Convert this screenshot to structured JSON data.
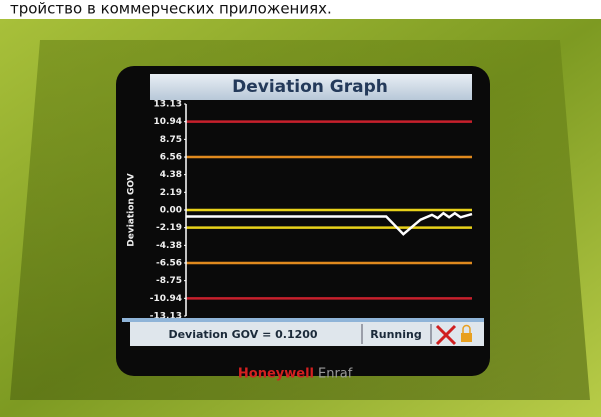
{
  "caption": "тройство в коммерческих приложениях.",
  "chart_data": {
    "type": "line",
    "title": "Deviation Graph",
    "y_label": "Deviation GOV",
    "ylim": [
      -13.13,
      13.13
    ],
    "yticks": [
      13.13,
      10.94,
      8.75,
      6.56,
      4.38,
      2.19,
      {
        "value": 0,
        "label": "0.00"
      },
      -2.19,
      -4.38,
      -6.56,
      -8.75,
      -10.94,
      -13.13
    ],
    "limit_lines": [
      {
        "value": 10.94,
        "color": "#c8202c"
      },
      {
        "value": 6.56,
        "color": "#e08a1e"
      },
      {
        "value": 0,
        "color": "#e8d21a"
      },
      {
        "value": -2.19,
        "color": "#e8d21a"
      },
      {
        "value": -6.56,
        "color": "#e08a1e"
      },
      {
        "value": -10.94,
        "color": "#c8202c"
      }
    ],
    "xlim": [
      0,
      100
    ],
    "x": [
      0,
      70,
      76,
      82,
      86,
      88,
      90,
      92,
      94,
      96,
      100
    ],
    "series": [
      {
        "color": "#ffffff",
        "values": [
          -0.8,
          -0.8,
          -3.0,
          -1.2,
          -0.6,
          -1.0,
          -0.4,
          -0.9,
          -0.4,
          -0.9,
          -0.5
        ]
      }
    ]
  },
  "status": {
    "text": "Deviation GOV = 0.1200",
    "state": "Running"
  },
  "brand": [
    "Honeywell",
    "Enraf"
  ]
}
